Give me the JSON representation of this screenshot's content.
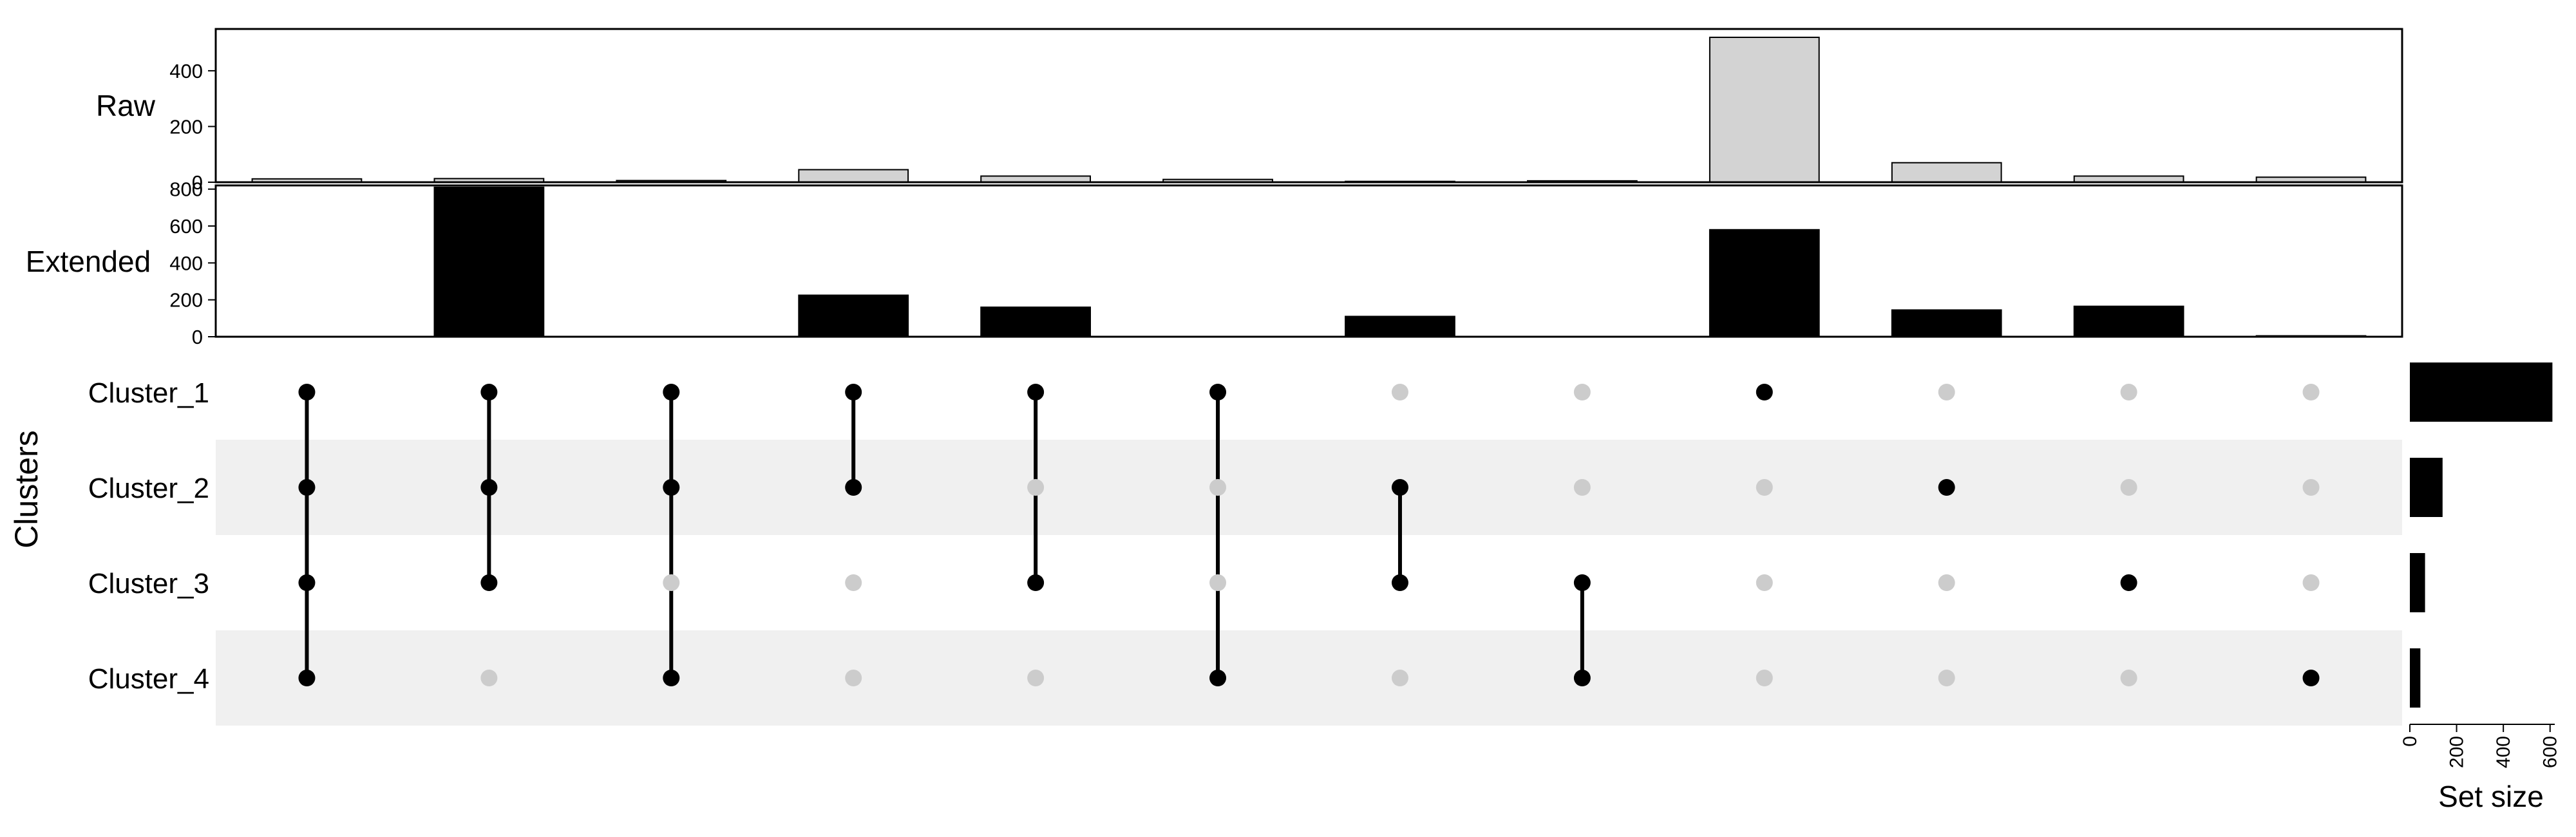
{
  "chart_data": {
    "type": "bar",
    "categories": [
      "Cluster_1",
      "Cluster_2",
      "Cluster_3",
      "Cluster_4"
    ],
    "intersections": [
      {
        "members": [
          1,
          1,
          1,
          1
        ],
        "raw": 12,
        "extended": 0
      },
      {
        "members": [
          1,
          1,
          1,
          0
        ],
        "raw": 13,
        "extended": 810
      },
      {
        "members": [
          1,
          1,
          0,
          1
        ],
        "raw": 6,
        "extended": 0
      },
      {
        "members": [
          1,
          1,
          0,
          0
        ],
        "raw": 45,
        "extended": 225
      },
      {
        "members": [
          1,
          0,
          1,
          0
        ],
        "raw": 22,
        "extended": 160
      },
      {
        "members": [
          1,
          0,
          0,
          1
        ],
        "raw": 10,
        "extended": 0
      },
      {
        "members": [
          0,
          1,
          1,
          0
        ],
        "raw": 3,
        "extended": 110
      },
      {
        "members": [
          0,
          0,
          1,
          1
        ],
        "raw": 5,
        "extended": 0
      },
      {
        "members": [
          1,
          0,
          0,
          0
        ],
        "raw": 520,
        "extended": 580
      },
      {
        "members": [
          0,
          1,
          0,
          0
        ],
        "raw": 70,
        "extended": 145
      },
      {
        "members": [
          0,
          0,
          1,
          0
        ],
        "raw": 22,
        "extended": 165
      },
      {
        "members": [
          0,
          0,
          0,
          1
        ],
        "raw": 18,
        "extended": 5
      }
    ],
    "series": [
      {
        "name": "Raw",
        "color": "#d3d3d3",
        "ylim": [
          0,
          550
        ],
        "ticks": [
          "0",
          "200",
          "400"
        ],
        "tick_values": [
          0,
          200,
          400
        ]
      },
      {
        "name": "Extended",
        "color": "#000000",
        "ylim": [
          0,
          820
        ],
        "ticks": [
          "0",
          "200",
          "400",
          "600",
          "800"
        ],
        "tick_values": [
          0,
          200,
          400,
          600,
          800
        ]
      }
    ],
    "set_sizes": {
      "values": [
        610,
        140,
        65,
        45
      ],
      "xlabel": "Set size",
      "xlim": [
        0,
        620
      ],
      "ticks": [
        "0",
        "200",
        "400",
        "600"
      ],
      "tick_values": [
        0,
        200,
        400,
        600
      ]
    },
    "ylabel": "Clusters",
    "colors": {
      "active_dot": "#000000",
      "inactive_dot": "#cccccc",
      "stripe": "#f0f0f0"
    }
  }
}
